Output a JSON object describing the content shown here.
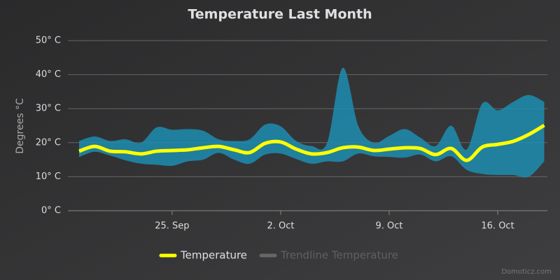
{
  "chart_data": {
    "type": "line",
    "title": "Temperature Last Month",
    "y_axis_label": "Degrees °C",
    "credits": "Domoticz.com",
    "x": [
      "Sep 19",
      "Sep 20",
      "Sep 21",
      "Sep 22",
      "Sep 23",
      "Sep 24",
      "Sep 25",
      "Sep 26",
      "Sep 27",
      "Sep 28",
      "Sep 29",
      "Sep 30",
      "Oct 1",
      "Oct 2",
      "Oct 3",
      "Oct 4",
      "Oct 5",
      "Oct 6",
      "Oct 7",
      "Oct 8",
      "Oct 9",
      "Oct 10",
      "Oct 11",
      "Oct 12",
      "Oct 13",
      "Oct 14",
      "Oct 15",
      "Oct 16",
      "Oct 17",
      "Oct 18",
      "Oct 19"
    ],
    "xticks": [
      {
        "value": "Sep 25",
        "label": "25. Sep"
      },
      {
        "value": "Oct 2",
        "label": "2. Oct"
      },
      {
        "value": "Oct 9",
        "label": "9. Oct"
      },
      {
        "value": "Oct 16",
        "label": "16. Oct"
      }
    ],
    "ylim": [
      0,
      50
    ],
    "yticks": [
      {
        "value": 0,
        "label": "0° C"
      },
      {
        "value": 10,
        "label": "10° C"
      },
      {
        "value": 20,
        "label": "20° C"
      },
      {
        "value": 30,
        "label": "30° C"
      },
      {
        "value": 40,
        "label": "40° C"
      },
      {
        "value": 50,
        "label": "50° C"
      }
    ],
    "grid": true,
    "range": {
      "color": "#1d8db0",
      "high": [
        20.5,
        21.8,
        20.5,
        21,
        20,
        24.5,
        23.8,
        24,
        23.5,
        21,
        20.5,
        21,
        25.3,
        24.8,
        20.5,
        19,
        20,
        42,
        25,
        20,
        22,
        24,
        21.5,
        19,
        25,
        18,
        31.5,
        29.5,
        32,
        34,
        32
      ],
      "low": [
        15.8,
        17.3,
        16.2,
        14.8,
        13.8,
        13.5,
        13.2,
        14.5,
        15,
        17,
        15,
        13.8,
        16.5,
        16.8,
        15.2,
        13.8,
        14.5,
        14.5,
        16.8,
        16,
        15.8,
        15.6,
        16.5,
        14.5,
        16,
        12,
        10.8,
        10.5,
        10.5,
        10,
        14.5
      ]
    },
    "series": [
      {
        "name": "Temperature",
        "color": "#ffff00",
        "values": [
          17.5,
          18.9,
          17.5,
          17.3,
          16.7,
          17.5,
          17.7,
          17.9,
          18.5,
          18.9,
          17.9,
          17.1,
          19.8,
          20.2,
          18.1,
          16.7,
          17.1,
          18.5,
          18.7,
          17.7,
          18.1,
          18.5,
          18.3,
          16.5,
          18.3,
          14.8,
          18.7,
          19.5,
          20.4,
          22.4,
          25.1
        ]
      },
      {
        "name": "Trendline Temperature",
        "color": "#666666",
        "visible": false
      }
    ],
    "legend": "bottom"
  }
}
